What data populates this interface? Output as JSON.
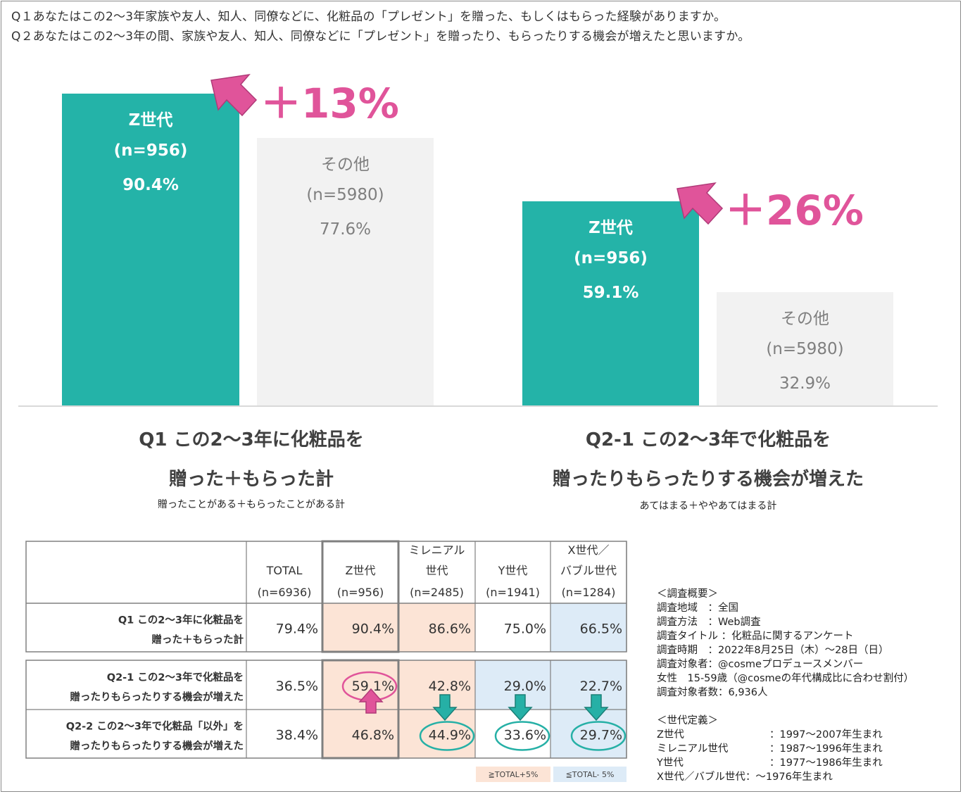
{
  "questions": {
    "q1": "Q１あなたはこの2～3年家族や友人、知人、同僚などに、化粧品の「プレゼント」を贈った、もしくはもらった経験がありますか。",
    "q2": "Q２あなたはこの2～3年の間、家族や友人、知人、同僚などに「プレゼント」を贈ったり、もらったりする機会が増えたと思いますか。"
  },
  "chart_data": [
    {
      "type": "bar",
      "title": "Q1 この2～3年に化粧品を 贈った＋もらった計",
      "subtitle": "贈ったことがある＋もらったことがある計",
      "categories": [
        "Z世代",
        "その他"
      ],
      "samples": [
        "(n=956)",
        "(n=5980)"
      ],
      "values": [
        90.4,
        77.6
      ],
      "value_labels": [
        "90.4%",
        "77.6%"
      ],
      "annotation": "＋13%",
      "ylim": [
        0,
        100
      ]
    },
    {
      "type": "bar",
      "title": "Q2-1 この2～3年で化粧品を 贈ったりもらったりする機会が増えた",
      "subtitle": "あてはまる＋ややあてはまる計",
      "categories": [
        "Z世代",
        "その他"
      ],
      "samples": [
        "(n=956)",
        "(n=5980)"
      ],
      "values": [
        59.1,
        32.9
      ],
      "value_labels": [
        "59.1%",
        "32.9%"
      ],
      "annotation": "＋26%",
      "ylim": [
        0,
        100
      ]
    },
    {
      "type": "table",
      "columns": [
        {
          "label": [
            "TOTAL"
          ],
          "n": "(n=6936)"
        },
        {
          "label": [
            "Z世代"
          ],
          "n": "(n=956)"
        },
        {
          "label": [
            "ミレニアル",
            "世代"
          ],
          "n": "(n=2485)"
        },
        {
          "label": [
            "Y世代"
          ],
          "n": "(n=1941)"
        },
        {
          "label": [
            "X世代／",
            "バブル世代"
          ],
          "n": "(n=1284)"
        }
      ],
      "rows": [
        {
          "label": [
            "Q1 この2～3年に化粧品を",
            "贈った＋もらった計"
          ],
          "values": [
            79.4,
            90.4,
            86.6,
            75.0,
            66.5
          ],
          "labels": [
            "79.4%",
            "90.4%",
            "86.6%",
            "75.0%",
            "66.5%"
          ]
        },
        {
          "label": [
            "Q2-1 この2～3年で化粧品を",
            "贈ったりもらったりする機会が増えた"
          ],
          "values": [
            36.5,
            59.1,
            42.8,
            29.0,
            22.7
          ],
          "labels": [
            "36.5%",
            "59.1%",
            "42.8%",
            "29.0%",
            "22.7%"
          ]
        },
        {
          "label": [
            "Q2-2 この2～3年で化粧品「以外」を",
            "贈ったりもらったりする機会が増えた"
          ],
          "values": [
            38.4,
            46.8,
            44.9,
            33.6,
            29.7
          ],
          "labels": [
            "38.4%",
            "46.8%",
            "44.9%",
            "33.6%",
            "29.7%"
          ]
        }
      ],
      "legend": [
        "≧TOTAL+5%",
        "≦TOTAL- 5%"
      ]
    }
  ],
  "colors": {
    "z_bar": "#24b3a8",
    "other_bar": "#f2f2f2",
    "accent_pink": "#e0549a",
    "arrow_teal": "#26b0a6",
    "high_cell": "#fce4d6",
    "low_cell": "#ddebf7"
  },
  "summary": {
    "heading": "＜調査概要＞",
    "rows": [
      {
        "k": "調査地域　：",
        "v": "全国"
      },
      {
        "k": "調査方法　：",
        "v": "Web調査"
      },
      {
        "k": "調査タイトル ：",
        "v": "化粧品に関するアンケート"
      },
      {
        "k": "調査時期　：",
        "v": "2022年8月25日（木）～28日（日）"
      },
      {
        "k": "調査対象者：",
        "v": "@cosmeプロデュースメンバー"
      }
    ],
    "line_women": "女性　15-59歳（@cosmeの年代構成比に合わせ割付）",
    "line_count": "調査対象者数：6,936人",
    "gen_heading": "＜世代定義＞",
    "gens": [
      {
        "k": "Z世代",
        "v": "：1997～2007年生まれ"
      },
      {
        "k": "ミレニアル世代",
        "v": "：1987～1996年生まれ"
      },
      {
        "k": "Y世代",
        "v": "：1977～1986年生まれ"
      },
      {
        "k": "X世代／バブル世代",
        "v": "：～1976年生まれ"
      }
    ]
  }
}
